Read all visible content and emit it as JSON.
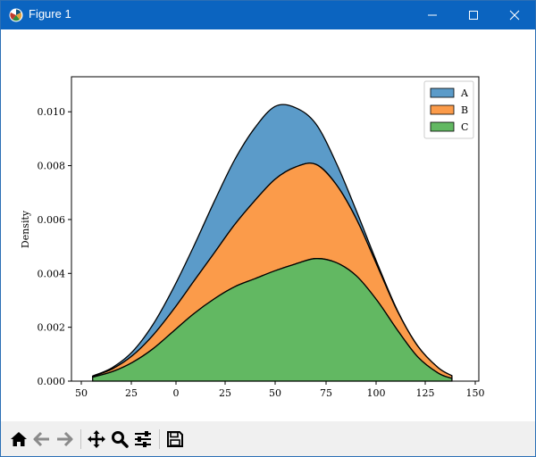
{
  "window": {
    "title": "Figure 1",
    "controls": [
      "minimize",
      "maximize",
      "close"
    ]
  },
  "toolbar": {
    "buttons": [
      {
        "name": "home",
        "icon": "home-icon"
      },
      {
        "name": "back",
        "icon": "arrow-left-icon"
      },
      {
        "name": "forward",
        "icon": "arrow-right-icon"
      },
      {
        "name": "pan",
        "icon": "move-icon"
      },
      {
        "name": "zoom",
        "icon": "magnifier-icon"
      },
      {
        "name": "configure-subplots",
        "icon": "sliders-icon"
      },
      {
        "name": "save",
        "icon": "floppy-disk-icon"
      }
    ]
  },
  "chart_data": {
    "type": "area",
    "stacked": true,
    "title": "",
    "xlabel": "",
    "ylabel": "Density",
    "xlim": [
      50,
      150
    ],
    "ylim": [
      0,
      0.0113
    ],
    "xticks": [
      "50",
      "25",
      "0",
      "25",
      "50",
      "75",
      "100",
      "125",
      "150"
    ],
    "yticks": [
      {
        "value": 0,
        "label": "0.000"
      },
      {
        "value": 0.002,
        "label": "0.002"
      },
      {
        "value": 0.004,
        "label": "0.004"
      },
      {
        "value": 0.006,
        "label": "0.006"
      },
      {
        "value": 0.008,
        "label": "0.008"
      },
      {
        "value": 0.01,
        "label": "0.010"
      }
    ],
    "grid": false,
    "legend_position": "top-right",
    "x": [
      55.2,
      60,
      65,
      70,
      75,
      80,
      85,
      90,
      95,
      100,
      105,
      110,
      115,
      120,
      125,
      130,
      135,
      140,
      143.4
    ],
    "series": [
      {
        "name": "C",
        "color": "#62b862",
        "values": [
          0.00015,
          0.00035,
          0.0007,
          0.0012,
          0.00185,
          0.0025,
          0.00305,
          0.0035,
          0.0038,
          0.0041,
          0.00435,
          0.00455,
          0.0044,
          0.0039,
          0.003,
          0.0019,
          0.0009,
          0.0003,
          0.0001
        ]
      },
      {
        "name": "B",
        "color": "#fb9b4a",
        "values": [
          3e-05,
          0.0001,
          0.00025,
          0.0005,
          0.0008,
          0.0012,
          0.0017,
          0.0023,
          0.0029,
          0.0034,
          0.0036,
          0.0035,
          0.0029,
          0.0021,
          0.0013,
          0.0007,
          0.0004,
          0.0002,
          0.0001
        ]
      },
      {
        "name": "A",
        "color": "#5b9bc9",
        "values": [
          1e-05,
          5e-05,
          0.00015,
          0.0004,
          0.0008,
          0.0013,
          0.0019,
          0.0024,
          0.0027,
          0.0027,
          0.0022,
          0.0015,
          0.0008,
          0.0003,
          0.0001,
          3e-05,
          1e-05,
          0,
          0
        ]
      }
    ],
    "legend_entries": [
      "A",
      "B",
      "C"
    ]
  }
}
